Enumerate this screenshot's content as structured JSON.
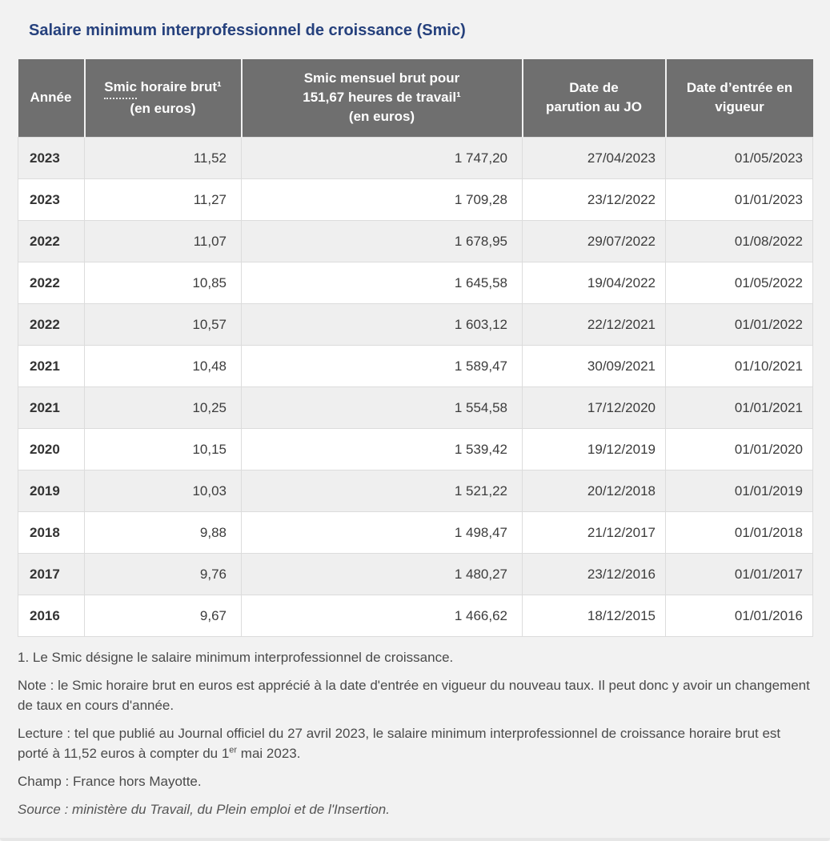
{
  "page": {
    "title": "Salaire minimum interprofessionnel de croissance (Smic)"
  },
  "table": {
    "header": {
      "annee": "Année",
      "horaire": {
        "abbr": "Smic",
        "rest": " horaire brut¹",
        "line2": "(en euros)"
      },
      "mensuel": {
        "line1": "Smic mensuel brut pour",
        "line2": "151,67 heures de travail¹",
        "line3": "(en euros)"
      },
      "parution": {
        "line1": "Date de",
        "line2": "parution au JO"
      },
      "vigueur": {
        "line1": "Date d’entrée en",
        "line2": "vigueur"
      }
    }
  },
  "chart_data": {
    "type": "table",
    "title": "Salaire minimum interprofessionnel de croissance (Smic)",
    "columns": [
      "Année",
      "Smic horaire brut¹ (en euros)",
      "Smic mensuel brut pour 151,67 heures de travail¹ (en euros)",
      "Date de parution au JO",
      "Date d’entrée en vigueur"
    ],
    "rows": [
      [
        "2023",
        "11,52",
        "1 747,20",
        "27/04/2023",
        "01/05/2023"
      ],
      [
        "2023",
        "11,27",
        "1 709,28",
        "23/12/2022",
        "01/01/2023"
      ],
      [
        "2022",
        "11,07",
        "1 678,95",
        "29/07/2022",
        "01/08/2022"
      ],
      [
        "2022",
        "10,85",
        "1 645,58",
        "19/04/2022",
        "01/05/2022"
      ],
      [
        "2022",
        "10,57",
        "1 603,12",
        "22/12/2021",
        "01/01/2022"
      ],
      [
        "2021",
        "10,48",
        "1 589,47",
        "30/09/2021",
        "01/10/2021"
      ],
      [
        "2021",
        "10,25",
        "1 554,58",
        "17/12/2020",
        "01/01/2021"
      ],
      [
        "2020",
        "10,15",
        "1 539,42",
        "19/12/2019",
        "01/01/2020"
      ],
      [
        "2019",
        "10,03",
        "1 521,22",
        "20/12/2018",
        "01/01/2019"
      ],
      [
        "2018",
        "9,88",
        "1 498,47",
        "21/12/2017",
        "01/01/2018"
      ],
      [
        "2017",
        "9,76",
        "1 480,27",
        "23/12/2016",
        "01/01/2017"
      ],
      [
        "2016",
        "9,67",
        "1 466,62",
        "18/12/2015",
        "01/01/2016"
      ]
    ]
  },
  "notes": {
    "footnote": "1. Le Smic désigne le salaire minimum interprofessionnel de croissance.",
    "note": "Note : le Smic horaire brut en euros est apprécié à la date d'entrée en vigueur du nouveau taux. Il peut donc y avoir un changement de taux en cours d'année.",
    "lecture": {
      "before": "Lecture : tel que publié au Journal officiel du 27 avril 2023, le salaire minimum interprofessionnel de croissance horaire brut est porté à 11,52 euros à compter du 1",
      "sup": "er",
      "after": " mai 2023."
    },
    "champ": "Champ : France hors Mayotte.",
    "source": "Source : ministère du Travail, du Plein emploi et de l'Insertion."
  },
  "colors": {
    "page_bg": "#f2f2f2",
    "title": "#26417d",
    "header_bg": "#6f6f6f",
    "header_text": "#ffffff",
    "row_alt_bg": "#efefef",
    "cell_border": "#dcdcdc",
    "note_text": "#4a4a4a"
  }
}
